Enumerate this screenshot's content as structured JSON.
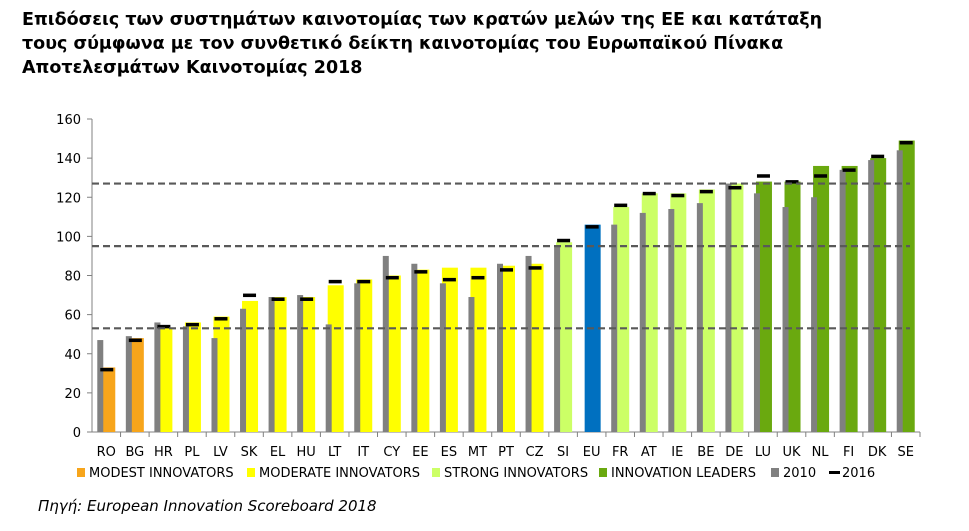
{
  "chart_data": {
    "type": "bar",
    "title_lines": [
      "Επιδόσεις των συστημάτων καινοτομίας των κρατών μελών της ΕΕ και κατάταξη",
      "τους σύμφωνα με τον συνθετικό δείκτη καινοτομίας του Ευρωπαϊκού Πίνακα",
      "Αποτελεσμάτων Καινοτομίας 2018"
    ],
    "categories": [
      "RO",
      "BG",
      "HR",
      "PL",
      "LV",
      "SK",
      "EL",
      "HU",
      "LT",
      "IT",
      "CY",
      "EE",
      "ES",
      "MT",
      "PT",
      "CZ",
      "SI",
      "EU",
      "FR",
      "AT",
      "IE",
      "BE",
      "DE",
      "LU",
      "UK",
      "NL",
      "FI",
      "DK",
      "SE"
    ],
    "groups": [
      "modest",
      "modest",
      "moderate",
      "moderate",
      "moderate",
      "moderate",
      "moderate",
      "moderate",
      "moderate",
      "moderate",
      "moderate",
      "moderate",
      "moderate",
      "moderate",
      "moderate",
      "moderate",
      "strong",
      "eu",
      "strong",
      "strong",
      "strong",
      "strong",
      "strong",
      "leader",
      "leader",
      "leader",
      "leader",
      "leader",
      "leader"
    ],
    "series": [
      {
        "name": "2018",
        "values": [
          33,
          48,
          53,
          56,
          59,
          67,
          69,
          69,
          75,
          78,
          80,
          83,
          84,
          84,
          85,
          86,
          97,
          106,
          115,
          122,
          122,
          124,
          127,
          128,
          128,
          136,
          136,
          140,
          149
        ]
      },
      {
        "name": "2010",
        "values": [
          47,
          49,
          56,
          54,
          48,
          63,
          69,
          70,
          55,
          76,
          90,
          86,
          76,
          69,
          86,
          90,
          95,
          null,
          106,
          112,
          114,
          117,
          127,
          122,
          115,
          120,
          134,
          139,
          144
        ]
      },
      {
        "name": "2016",
        "values": [
          32,
          47,
          54,
          55,
          58,
          70,
          68,
          68,
          77,
          77,
          79,
          82,
          78,
          79,
          83,
          84,
          98,
          105,
          116,
          122,
          121,
          123,
          125,
          131,
          128,
          131,
          134,
          141,
          148
        ]
      }
    ],
    "reference_lines": [
      53,
      95,
      127
    ],
    "ylim": [
      0,
      160
    ],
    "yticks": [
      0,
      20,
      40,
      60,
      80,
      100,
      120,
      140,
      160
    ],
    "legend": [
      {
        "key": "modest",
        "label": "MODEST INNOVATORS",
        "kind": "box"
      },
      {
        "key": "moderate",
        "label": "MODERATE INNOVATORS",
        "kind": "box"
      },
      {
        "key": "strong",
        "label": "STRONG INNOVATORS",
        "kind": "box"
      },
      {
        "key": "leader",
        "label": "INNOVATION LEADERS",
        "kind": "box"
      },
      {
        "key": "y2010",
        "label": "2010",
        "kind": "box"
      },
      {
        "key": "y2016",
        "label": "2016",
        "kind": "dash"
      }
    ],
    "colors": {
      "modest": "#F7A51B",
      "moderate": "#FFFF00",
      "strong": "#CCFF66",
      "leader": "#6AA90F",
      "eu": "#0070C0",
      "y2010": "#808080",
      "y2016": "#000000",
      "reference": "#595959",
      "axis": "#808080"
    },
    "xlabel": "",
    "ylabel": ""
  },
  "source": "Πηγή: European Innovation Scoreboard 2018"
}
